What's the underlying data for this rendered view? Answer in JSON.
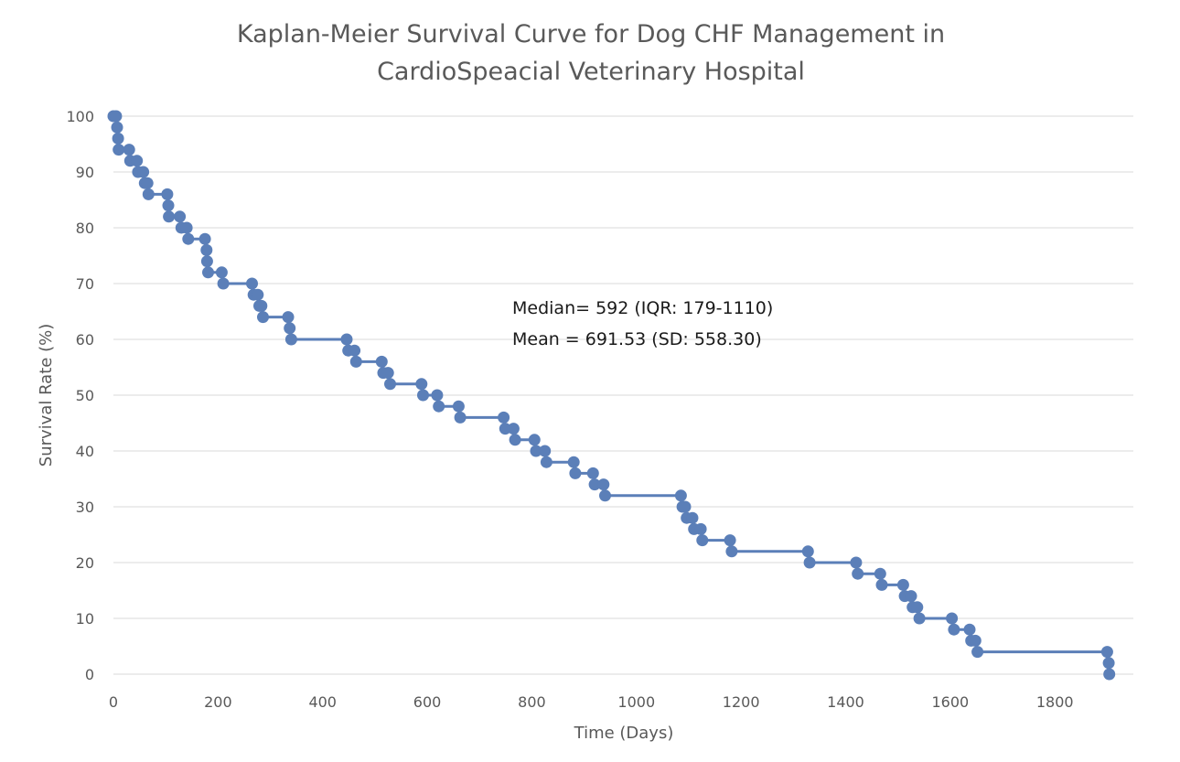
{
  "chart_data": {
    "type": "line",
    "title_lines": [
      "Kaplan-Meier Survival Curve for Dog CHF Management in",
      "CardioSpeacial Veterinary Hospital"
    ],
    "xlabel": "Time (Days)",
    "ylabel": "Survival Rate (%)",
    "xlim": [
      0,
      1950
    ],
    "ylim": [
      0,
      100
    ],
    "x_ticks": [
      "0",
      "200",
      "400",
      "600",
      "800",
      "1000",
      "1200",
      "1400",
      "1600",
      "1800"
    ],
    "y_ticks": [
      "0",
      "10",
      "20",
      "30",
      "40",
      "50",
      "60",
      "70",
      "80",
      "90",
      "100"
    ],
    "grid": true,
    "series_color": "#5b7fb8",
    "annotations": [
      "Median= 592 (IQR: 179-1110)",
      "Mean = 691.53 (SD: 558.30)"
    ],
    "points": [
      [
        0,
        100
      ],
      [
        5,
        100
      ],
      [
        7,
        98
      ],
      [
        9,
        96
      ],
      [
        10,
        94
      ],
      [
        30,
        94
      ],
      [
        32,
        92
      ],
      [
        45,
        92
      ],
      [
        47,
        90
      ],
      [
        57,
        90
      ],
      [
        60,
        88
      ],
      [
        65,
        88
      ],
      [
        67,
        86
      ],
      [
        103,
        86
      ],
      [
        105,
        84
      ],
      [
        106,
        82
      ],
      [
        127,
        82
      ],
      [
        130,
        80
      ],
      [
        140,
        80
      ],
      [
        143,
        78
      ],
      [
        175,
        78
      ],
      [
        178,
        76
      ],
      [
        179,
        74
      ],
      [
        181,
        72
      ],
      [
        207,
        72
      ],
      [
        210,
        70
      ],
      [
        265,
        70
      ],
      [
        268,
        68
      ],
      [
        276,
        68
      ],
      [
        279,
        66
      ],
      [
        283,
        66
      ],
      [
        286,
        64
      ],
      [
        334,
        64
      ],
      [
        337,
        62
      ],
      [
        340,
        60
      ],
      [
        446,
        60
      ],
      [
        449,
        58
      ],
      [
        461,
        58
      ],
      [
        464,
        56
      ],
      [
        513,
        56
      ],
      [
        516,
        54
      ],
      [
        525,
        54
      ],
      [
        529,
        52
      ],
      [
        589,
        52
      ],
      [
        592,
        50
      ],
      [
        619,
        50
      ],
      [
        622,
        48
      ],
      [
        660,
        48
      ],
      [
        663,
        46
      ],
      [
        746,
        46
      ],
      [
        749,
        44
      ],
      [
        765,
        44
      ],
      [
        768,
        42
      ],
      [
        805,
        42
      ],
      [
        808,
        40
      ],
      [
        825,
        40
      ],
      [
        828,
        38
      ],
      [
        880,
        38
      ],
      [
        883,
        36
      ],
      [
        917,
        36
      ],
      [
        920,
        34
      ],
      [
        937,
        34
      ],
      [
        940,
        32
      ],
      [
        1085,
        32
      ],
      [
        1088,
        30
      ],
      [
        1093,
        30
      ],
      [
        1096,
        28
      ],
      [
        1107,
        28
      ],
      [
        1110,
        26
      ],
      [
        1123,
        26
      ],
      [
        1126,
        24
      ],
      [
        1179,
        24
      ],
      [
        1182,
        22
      ],
      [
        1328,
        22
      ],
      [
        1331,
        20
      ],
      [
        1420,
        20
      ],
      [
        1423,
        18
      ],
      [
        1466,
        18
      ],
      [
        1469,
        16
      ],
      [
        1510,
        16
      ],
      [
        1513,
        14
      ],
      [
        1525,
        14
      ],
      [
        1528,
        12
      ],
      [
        1537,
        12
      ],
      [
        1541,
        10
      ],
      [
        1603,
        10
      ],
      [
        1607,
        8
      ],
      [
        1637,
        8
      ],
      [
        1640,
        6
      ],
      [
        1648,
        6
      ],
      [
        1652,
        4
      ],
      [
        1900,
        4
      ],
      [
        1903,
        2
      ],
      [
        1904,
        0
      ]
    ]
  }
}
